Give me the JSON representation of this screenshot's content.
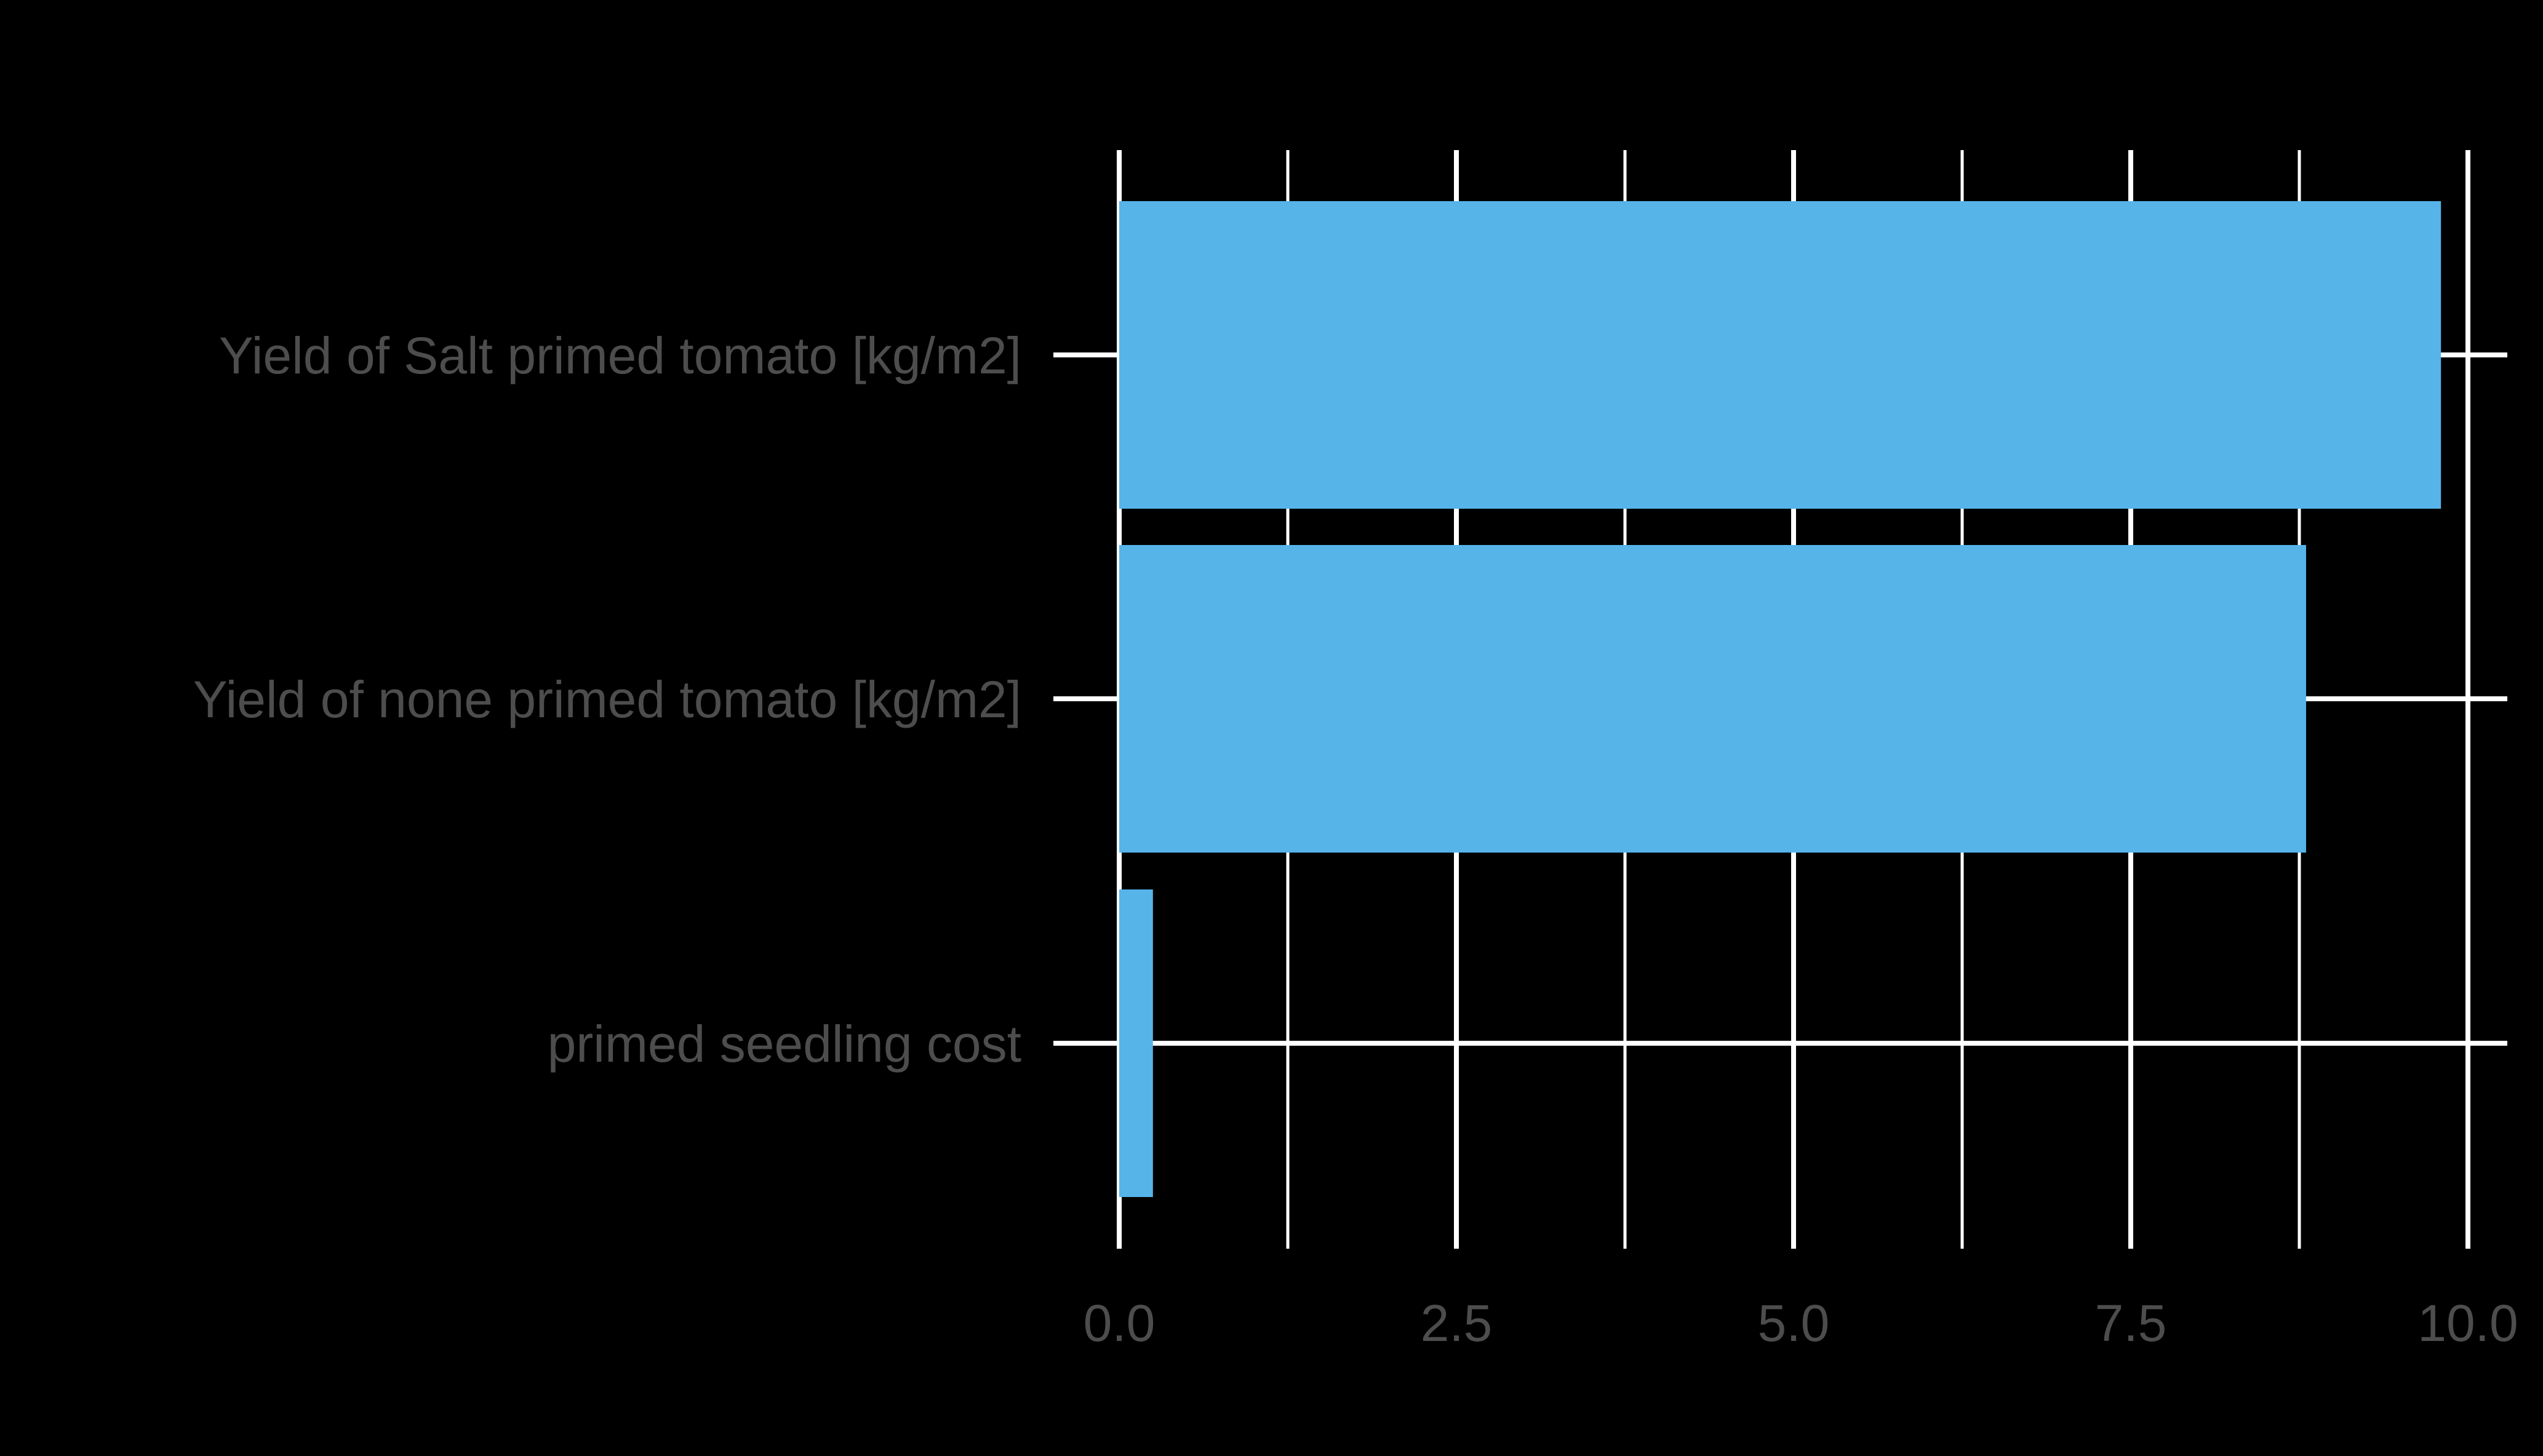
{
  "chart_data": {
    "type": "bar",
    "orientation": "horizontal",
    "categories": [
      "Yield of Salt primed tomato [kg/m2]",
      "Yield of none primed tomato [kg/m2]",
      "primed seedling cost"
    ],
    "values": [
      9.8,
      8.8,
      0.25
    ],
    "xlim": [
      0,
      10
    ],
    "x_ticks": [
      0,
      2.5,
      5,
      7.5,
      10
    ],
    "x_tick_labels": [
      "0.0",
      "2.5",
      "5.0",
      "7.5",
      "10.0"
    ],
    "title": "",
    "xlabel": "",
    "ylabel": "",
    "grid": true,
    "legend": "none",
    "colors": {
      "bar": "#56B4E9",
      "background": "#000000",
      "grid": "#FFFFFF",
      "text": "#4D4D4D"
    }
  }
}
